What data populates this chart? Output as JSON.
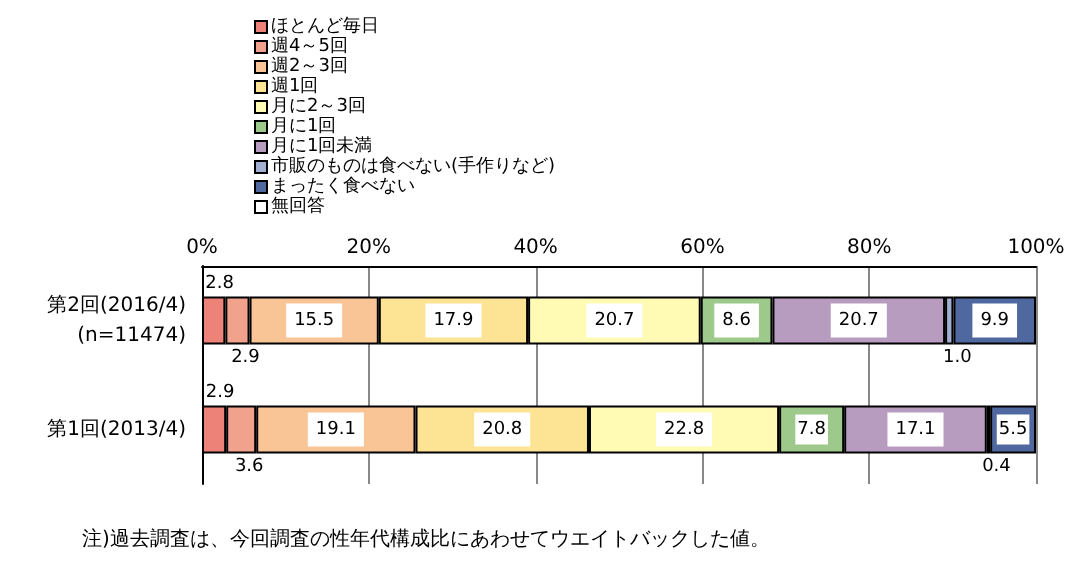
{
  "chart_data": {
    "type": "bar",
    "orientation": "horizontal",
    "stacked": true,
    "categories": [
      "第2回(2016/4)\n(n=11474)",
      "第1回(2013/4)"
    ],
    "series": [
      {
        "name": "ほとんど毎日",
        "color": "#ec8278",
        "values": [
          2.8,
          2.9
        ],
        "value_labels": [
          "2.8",
          "2.9"
        ]
      },
      {
        "name": "週4～5回",
        "color": "#f0a28c",
        "values": [
          2.9,
          3.6
        ],
        "value_labels": [
          "2.9",
          "3.6"
        ]
      },
      {
        "name": "週2～3回",
        "color": "#f9c496",
        "values": [
          15.5,
          19.1
        ],
        "value_labels": [
          "15.5",
          "19.1"
        ]
      },
      {
        "name": "週1回",
        "color": "#fde394",
        "values": [
          17.9,
          20.8
        ],
        "value_labels": [
          "17.9",
          "20.8"
        ]
      },
      {
        "name": "月に2～3回",
        "color": "#fffab4",
        "values": [
          20.7,
          22.8
        ],
        "value_labels": [
          "20.7",
          "22.8"
        ]
      },
      {
        "name": "月に1回",
        "color": "#9dc98a",
        "values": [
          8.6,
          7.8
        ],
        "value_labels": [
          "8.6",
          "7.8"
        ]
      },
      {
        "name": "月に1回未満",
        "color": "#b89cc0",
        "values": [
          20.7,
          17.1
        ],
        "value_labels": [
          "20.7",
          "17.1"
        ]
      },
      {
        "name": "市販のものは食べない(手作りなど)",
        "color": "#a2aed2",
        "values": [
          1.0,
          0.4
        ],
        "value_labels": [
          "1.0",
          "0.4"
        ]
      },
      {
        "name": "まったく食べない",
        "color": "#5068a0",
        "values": [
          9.9,
          5.5
        ],
        "value_labels": [
          "9.9",
          "5.5"
        ]
      },
      {
        "name": "無回答",
        "color": "#ffffff",
        "values": [
          null,
          null
        ]
      }
    ],
    "xlim": [
      0,
      100
    ],
    "xticks": [
      {
        "value": 0,
        "label": "0%"
      },
      {
        "value": 20,
        "label": "20%"
      },
      {
        "value": 40,
        "label": "40%"
      },
      {
        "value": 60,
        "label": "60%"
      },
      {
        "value": 80,
        "label": "80%"
      },
      {
        "value": 100,
        "label": "100%"
      }
    ],
    "grid": "x",
    "legend": "top",
    "annotations": [
      "注)過去調査は、今回調査の性年代構成比にあわせてウエイトバックした値。"
    ]
  }
}
